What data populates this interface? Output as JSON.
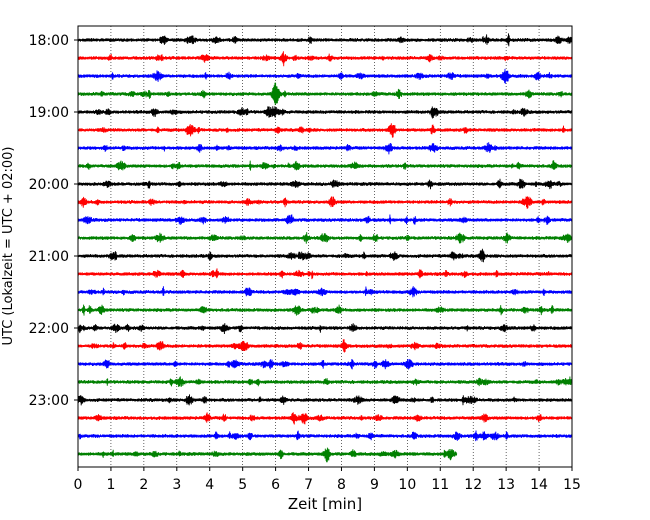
{
  "chart_data": {
    "type": "line",
    "title": "",
    "xlabel": "Zeit  [min]",
    "ylabel": "UTC (Lokalzeit = UTC + 02:00)",
    "xlim": [
      0,
      15
    ],
    "x_ticks": [
      "0",
      "1",
      "2",
      "3",
      "4",
      "5",
      "6",
      "7",
      "8",
      "9",
      "10",
      "11",
      "12",
      "13",
      "14",
      "15"
    ],
    "y_tick_labels": [
      "18:00",
      "19:00",
      "20:00",
      "21:00",
      "22:00",
      "23:00"
    ],
    "grid": "vertical dotted at each minute",
    "trace_colors": [
      "#000000",
      "#ff0000",
      "#0000ff",
      "#008000"
    ],
    "rows": [
      {
        "start": "18:00",
        "end_min": 15
      },
      {
        "start": "18:15",
        "end_min": 15
      },
      {
        "start": "18:30",
        "end_min": 15
      },
      {
        "start": "18:45",
        "end_min": 15
      },
      {
        "start": "19:00",
        "end_min": 15
      },
      {
        "start": "19:15",
        "end_min": 15
      },
      {
        "start": "19:30",
        "end_min": 15
      },
      {
        "start": "19:45",
        "end_min": 15
      },
      {
        "start": "20:00",
        "end_min": 15
      },
      {
        "start": "20:15",
        "end_min": 15
      },
      {
        "start": "20:30",
        "end_min": 15
      },
      {
        "start": "20:45",
        "end_min": 15
      },
      {
        "start": "21:00",
        "end_min": 15
      },
      {
        "start": "21:15",
        "end_min": 15
      },
      {
        "start": "21:30",
        "end_min": 15
      },
      {
        "start": "21:45",
        "end_min": 15
      },
      {
        "start": "22:00",
        "end_min": 15
      },
      {
        "start": "22:15",
        "end_min": 15
      },
      {
        "start": "22:30",
        "end_min": 15
      },
      {
        "start": "22:45",
        "end_min": 15
      },
      {
        "start": "23:00",
        "end_min": 15
      },
      {
        "start": "23:15",
        "end_min": 15
      },
      {
        "start": "23:30",
        "end_min": 15
      },
      {
        "start": "23:45",
        "end_min": 11.5
      }
    ]
  }
}
